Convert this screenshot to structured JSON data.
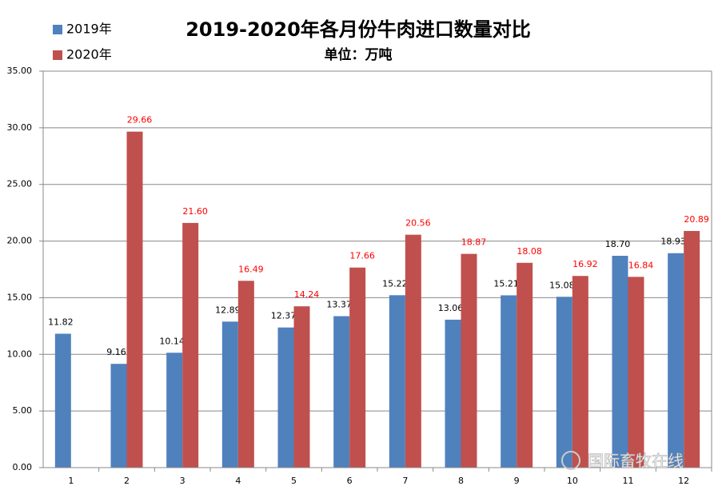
{
  "chart_data": {
    "type": "bar",
    "title": "2019-2020年各月份牛肉进口数量对比",
    "subtitle": "单位：万吨",
    "watermark": "国际畜牧在线",
    "categories": [
      "1",
      "2",
      "3",
      "4",
      "5",
      "6",
      "7",
      "8",
      "9",
      "10",
      "11",
      "12"
    ],
    "series": [
      {
        "name": "2019年",
        "color": "#4f81bd",
        "label_color": "#000000",
        "values": [
          11.82,
          9.16,
          10.14,
          12.89,
          12.37,
          13.37,
          15.22,
          13.06,
          15.21,
          15.08,
          18.7,
          18.93
        ],
        "value_labels": [
          "11.82",
          "9.16",
          "10.14",
          "12.89",
          "12.37",
          "13.37",
          "15.22",
          "13.06",
          "15.21",
          "15.08",
          "18.70",
          "18.93"
        ]
      },
      {
        "name": "2020年",
        "color": "#c0504d",
        "label_color": "#ff0000",
        "values": [
          null,
          29.66,
          21.6,
          16.49,
          14.24,
          17.66,
          20.56,
          18.87,
          18.08,
          16.92,
          16.84,
          20.89
        ],
        "value_labels": [
          null,
          "29.66",
          "21.60",
          "16.49",
          "14.24",
          "17.66",
          "20.56",
          "18.87",
          "18.08",
          "16.92",
          "16.84",
          "20.89"
        ]
      }
    ],
    "ylim": [
      0,
      35
    ],
    "yticks": [
      {
        "value": 0,
        "label": "0.00"
      },
      {
        "value": 5,
        "label": "5.00"
      },
      {
        "value": 10,
        "label": "10.00"
      },
      {
        "value": 15,
        "label": "15.00"
      },
      {
        "value": 20,
        "label": "20.00"
      },
      {
        "value": 25,
        "label": "25.00"
      },
      {
        "value": 30,
        "label": "30.00"
      },
      {
        "value": 35,
        "label": "35.00"
      }
    ],
    "grid": true
  }
}
